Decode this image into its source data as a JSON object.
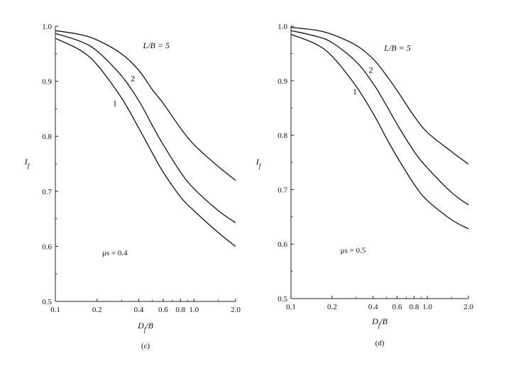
{
  "chart_data": [
    {
      "type": "line",
      "panel_label": "(c)",
      "xlabel": "D_f/B",
      "ylabel": "I_f",
      "x_scale": "log",
      "xlim": [
        0.1,
        2.0
      ],
      "ylim": [
        0.5,
        1.0
      ],
      "x_ticks": [
        0.1,
        0.2,
        0.4,
        0.6,
        0.8,
        1.0,
        2.0
      ],
      "x_tick_labels": [
        "0.1",
        "0.2",
        "0.4",
        "0.6",
        "0.8",
        "1.0",
        "2.0"
      ],
      "y_ticks": [
        0.5,
        0.6,
        0.7,
        0.8,
        0.9,
        1.0
      ],
      "y_tick_labels": [
        "0.5",
        "0.6",
        "0.7",
        "0.8",
        "0.9",
        "1.0"
      ],
      "grid": false,
      "annotation": "μs = 0.4",
      "series": [
        {
          "name": "1",
          "x": [
            0.1,
            0.15,
            0.2,
            0.3,
            0.4,
            0.5,
            0.6,
            0.8,
            1.0,
            1.5,
            2.0
          ],
          "y": [
            0.978,
            0.957,
            0.93,
            0.87,
            0.815,
            0.77,
            0.735,
            0.69,
            0.665,
            0.625,
            0.6
          ]
        },
        {
          "name": "2",
          "x": [
            0.1,
            0.15,
            0.2,
            0.3,
            0.4,
            0.5,
            0.6,
            0.8,
            1.0,
            1.5,
            2.0
          ],
          "y": [
            0.987,
            0.973,
            0.955,
            0.91,
            0.865,
            0.82,
            0.785,
            0.735,
            0.705,
            0.665,
            0.643
          ]
        },
        {
          "name": "L/B = 5",
          "x": [
            0.1,
            0.15,
            0.2,
            0.3,
            0.4,
            0.5,
            0.6,
            0.8,
            1.0,
            1.5,
            2.0
          ],
          "y": [
            0.992,
            0.985,
            0.975,
            0.95,
            0.92,
            0.885,
            0.86,
            0.815,
            0.785,
            0.745,
            0.72
          ]
        }
      ]
    },
    {
      "type": "line",
      "panel_label": "(d)",
      "xlabel": "D_f/B",
      "ylabel": "I_f",
      "x_scale": "log",
      "xlim": [
        0.1,
        2.0
      ],
      "ylim": [
        0.5,
        1.0
      ],
      "x_ticks": [
        0.1,
        0.2,
        0.4,
        0.6,
        0.8,
        1.0,
        2.0
      ],
      "x_tick_labels": [
        "0.1",
        "0.2",
        "0.4",
        "0.6",
        "0.8",
        "1.0",
        "2.0"
      ],
      "y_ticks": [
        0.5,
        0.6,
        0.7,
        0.8,
        0.9,
        1.0
      ],
      "y_tick_labels": [
        "0.5",
        "0.6",
        "0.7",
        "0.8",
        "0.9",
        "1.0"
      ],
      "grid": false,
      "annotation": "μs = 0.5",
      "series": [
        {
          "name": "1",
          "x": [
            0.1,
            0.15,
            0.2,
            0.3,
            0.4,
            0.5,
            0.6,
            0.8,
            1.0,
            1.5,
            2.0
          ],
          "y": [
            0.985,
            0.968,
            0.945,
            0.89,
            0.84,
            0.795,
            0.76,
            0.71,
            0.68,
            0.645,
            0.628
          ]
        },
        {
          "name": "2",
          "x": [
            0.1,
            0.15,
            0.2,
            0.3,
            0.4,
            0.5,
            0.6,
            0.8,
            1.0,
            1.5,
            2.0
          ],
          "y": [
            0.992,
            0.982,
            0.97,
            0.935,
            0.895,
            0.855,
            0.82,
            0.77,
            0.74,
            0.695,
            0.672
          ]
        },
        {
          "name": "L/B = 5",
          "x": [
            0.1,
            0.15,
            0.2,
            0.3,
            0.4,
            0.5,
            0.6,
            0.8,
            1.0,
            1.5,
            2.0
          ],
          "y": [
            0.998,
            0.993,
            0.985,
            0.965,
            0.94,
            0.91,
            0.882,
            0.835,
            0.805,
            0.77,
            0.747
          ]
        }
      ]
    }
  ]
}
